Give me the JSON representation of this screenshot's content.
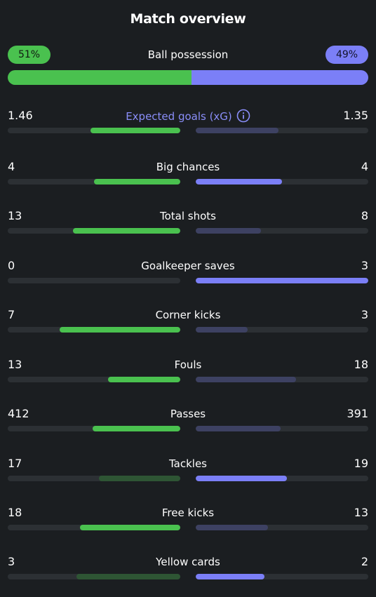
{
  "title": "Match overview",
  "possession": {
    "label": "Ball possession",
    "home_display": "51%",
    "away_display": "49%",
    "home_value": 51,
    "away_value": 49
  },
  "stats": [
    {
      "label": "Expected goals (xG)",
      "home": "1.46",
      "away": "1.35",
      "home_fill": 0.52,
      "away_fill": 0.48,
      "home_strong": true,
      "away_strong": false,
      "accent": true,
      "info_icon": "info-icon"
    },
    {
      "label": "Big chances",
      "home": "4",
      "away": "4",
      "home_fill": 0.5,
      "away_fill": 0.5,
      "home_strong": true,
      "away_strong": true
    },
    {
      "label": "Total shots",
      "home": "13",
      "away": "8",
      "home_fill": 0.62,
      "away_fill": 0.38,
      "home_strong": true,
      "away_strong": false
    },
    {
      "label": "Goalkeeper saves",
      "home": "0",
      "away": "3",
      "home_fill": 0.0,
      "away_fill": 1.0,
      "home_strong": false,
      "away_strong": true
    },
    {
      "label": "Corner kicks",
      "home": "7",
      "away": "3",
      "home_fill": 0.7,
      "away_fill": 0.3,
      "home_strong": true,
      "away_strong": false
    },
    {
      "label": "Fouls",
      "home": "13",
      "away": "18",
      "home_fill": 0.42,
      "away_fill": 0.58,
      "home_strong": true,
      "away_strong": false
    },
    {
      "label": "Passes",
      "home": "412",
      "away": "391",
      "home_fill": 0.51,
      "away_fill": 0.49,
      "home_strong": true,
      "away_strong": false
    },
    {
      "label": "Tackles",
      "home": "17",
      "away": "19",
      "home_fill": 0.47,
      "away_fill": 0.53,
      "home_strong": false,
      "away_strong": true
    },
    {
      "label": "Free kicks",
      "home": "18",
      "away": "13",
      "home_fill": 0.58,
      "away_fill": 0.42,
      "home_strong": true,
      "away_strong": false
    },
    {
      "label": "Yellow cards",
      "home": "3",
      "away": "2",
      "home_fill": 0.6,
      "away_fill": 0.4,
      "home_strong": false,
      "away_strong": true
    }
  ],
  "colors": {
    "background": "#1b1e21",
    "home": "#4ac14f",
    "home_weak": "#2e5534",
    "away": "#7b7ff7",
    "away_weak": "#3d4162",
    "track": "#2c3034",
    "accent_label": "#8a8ef9"
  }
}
